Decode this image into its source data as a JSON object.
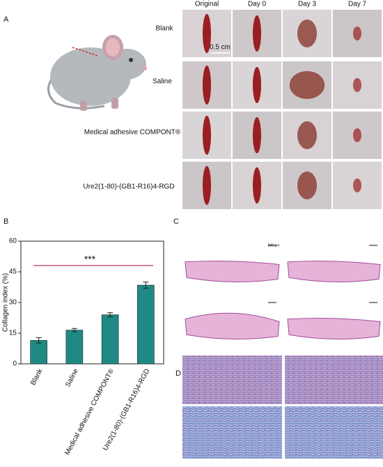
{
  "panel_a": {
    "label": "A",
    "columns": [
      "Original",
      "Day 0",
      "Day 3",
      "Day 7"
    ],
    "rows": [
      "Blank",
      "Saline",
      "Medical adhesive COMPONT®",
      "Ure2(1-80)-(GB1-R16)4-RGD"
    ],
    "scale": "0.5 cm"
  },
  "panel_b_label": "B",
  "chart_data": {
    "type": "bar",
    "categories": [
      "Blank",
      "Saline",
      "Medical adhesive COMPONT®",
      "Ure2(1-80)-(GB1-R16)4-RGD"
    ],
    "values": [
      11.5,
      16.5,
      24,
      38.5
    ],
    "errors": [
      1.3,
      0.8,
      1,
      1.5
    ],
    "color": "#1f8a84",
    "ylim": [
      0,
      60
    ],
    "yticks": [
      0,
      15,
      30,
      45,
      60
    ],
    "ylabel": "Collagen index (%)",
    "annotation": "***",
    "annotation_color": "#2e8b57",
    "line_color": "#c0306a"
  },
  "panel_c": {
    "label": "C",
    "scale": "500 μm"
  },
  "panel_d": {
    "label": "D"
  }
}
